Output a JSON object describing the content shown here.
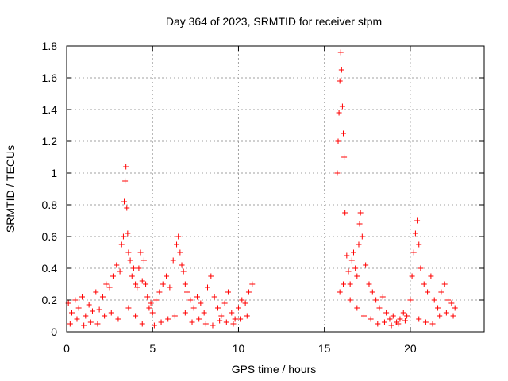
{
  "chart_data": {
    "type": "scatter",
    "title": "Day 364 of 2023, SRMTID for receiver stpm",
    "xlabel": "GPS time / hours",
    "ylabel": "SRMTID / TECUs",
    "xlim": [
      0,
      24.3
    ],
    "ylim": [
      0,
      1.8
    ],
    "xticks": [
      0,
      5,
      10,
      15,
      20
    ],
    "xtick_labels": [
      "0",
      "5",
      "10",
      "15",
      "20"
    ],
    "yticks": [
      0,
      0.2,
      0.4,
      0.6,
      0.8,
      1.0,
      1.2,
      1.4,
      1.6,
      1.8
    ],
    "ytick_labels": [
      "0",
      "0.2",
      "0.4",
      "0.6",
      "0.8",
      "1",
      "1.2",
      "1.4",
      "1.6",
      "1.8"
    ],
    "grid": true,
    "marker": "+",
    "series": [
      {
        "name": "SRMTID",
        "color": "#ff0000",
        "x": [
          0.1,
          0.3,
          0.5,
          0.7,
          0.9,
          1.1,
          1.3,
          1.5,
          1.7,
          1.9,
          2.1,
          2.3,
          2.5,
          2.7,
          2.9,
          3.1,
          3.2,
          3.3,
          3.35,
          3.4,
          3.45,
          3.5,
          3.55,
          3.6,
          3.7,
          3.8,
          3.9,
          4.0,
          4.1,
          4.2,
          4.3,
          4.4,
          4.5,
          4.6,
          4.7,
          4.8,
          4.9,
          5.0,
          5.2,
          5.4,
          5.6,
          5.8,
          6.0,
          6.2,
          6.4,
          6.5,
          6.6,
          6.7,
          6.8,
          6.9,
          7.0,
          7.2,
          7.4,
          7.6,
          7.8,
          8.0,
          8.2,
          8.4,
          8.6,
          8.8,
          9.0,
          9.2,
          9.4,
          9.6,
          9.8,
          10.0,
          10.2,
          10.4,
          10.6,
          10.8,
          0.2,
          0.6,
          1.0,
          1.4,
          1.8,
          2.2,
          2.6,
          3.0,
          3.6,
          4.0,
          4.4,
          5.1,
          5.5,
          5.9,
          6.3,
          6.9,
          7.3,
          7.7,
          8.1,
          8.5,
          8.9,
          9.3,
          9.7,
          10.1,
          10.5,
          15.75,
          15.8,
          15.85,
          15.9,
          15.95,
          16.0,
          16.05,
          16.1,
          16.15,
          16.2,
          16.3,
          16.4,
          16.5,
          16.6,
          16.7,
          16.8,
          16.9,
          17.0,
          17.05,
          17.1,
          17.2,
          17.4,
          17.6,
          17.8,
          18.0,
          18.2,
          18.4,
          18.6,
          18.8,
          19.0,
          19.2,
          19.4,
          19.6,
          19.8,
          20.0,
          20.1,
          20.2,
          20.3,
          20.4,
          20.5,
          20.6,
          20.8,
          21.0,
          21.2,
          21.4,
          21.6,
          21.8,
          22.0,
          22.2,
          22.4,
          22.6,
          15.9,
          16.1,
          16.5,
          16.9,
          17.3,
          17.7,
          18.1,
          18.5,
          18.9,
          19.3,
          19.7,
          20.5,
          20.9,
          21.3,
          21.7,
          22.1,
          22.5
        ],
        "y": [
          0.18,
          0.12,
          0.2,
          0.15,
          0.22,
          0.1,
          0.17,
          0.13,
          0.25,
          0.14,
          0.22,
          0.3,
          0.28,
          0.35,
          0.42,
          0.38,
          0.55,
          0.6,
          0.82,
          0.95,
          1.04,
          0.78,
          0.62,
          0.5,
          0.45,
          0.35,
          0.4,
          0.3,
          0.28,
          0.4,
          0.5,
          0.32,
          0.45,
          0.3,
          0.22,
          0.15,
          0.18,
          0.12,
          0.2,
          0.25,
          0.3,
          0.35,
          0.28,
          0.45,
          0.55,
          0.6,
          0.5,
          0.42,
          0.38,
          0.3,
          0.25,
          0.2,
          0.15,
          0.22,
          0.18,
          0.12,
          0.28,
          0.35,
          0.22,
          0.15,
          0.1,
          0.18,
          0.25,
          0.12,
          0.08,
          0.15,
          0.2,
          0.18,
          0.25,
          0.3,
          0.05,
          0.08,
          0.04,
          0.06,
          0.05,
          0.1,
          0.12,
          0.08,
          0.15,
          0.1,
          0.05,
          0.04,
          0.06,
          0.08,
          0.1,
          0.12,
          0.06,
          0.08,
          0.05,
          0.04,
          0.07,
          0.06,
          0.05,
          0.08,
          0.1,
          1.0,
          1.2,
          1.38,
          1.58,
          1.76,
          1.65,
          1.42,
          1.25,
          1.1,
          0.75,
          0.48,
          0.38,
          0.3,
          0.45,
          0.5,
          0.4,
          0.35,
          0.55,
          0.68,
          0.75,
          0.6,
          0.42,
          0.3,
          0.25,
          0.2,
          0.15,
          0.22,
          0.12,
          0.08,
          0.1,
          0.06,
          0.08,
          0.12,
          0.1,
          0.2,
          0.35,
          0.5,
          0.62,
          0.7,
          0.55,
          0.4,
          0.3,
          0.25,
          0.35,
          0.2,
          0.15,
          0.25,
          0.3,
          0.2,
          0.18,
          0.15,
          0.25,
          0.3,
          0.2,
          0.15,
          0.1,
          0.08,
          0.05,
          0.06,
          0.04,
          0.05,
          0.07,
          0.08,
          0.06,
          0.05,
          0.1,
          0.12,
          0.1
        ]
      }
    ]
  }
}
